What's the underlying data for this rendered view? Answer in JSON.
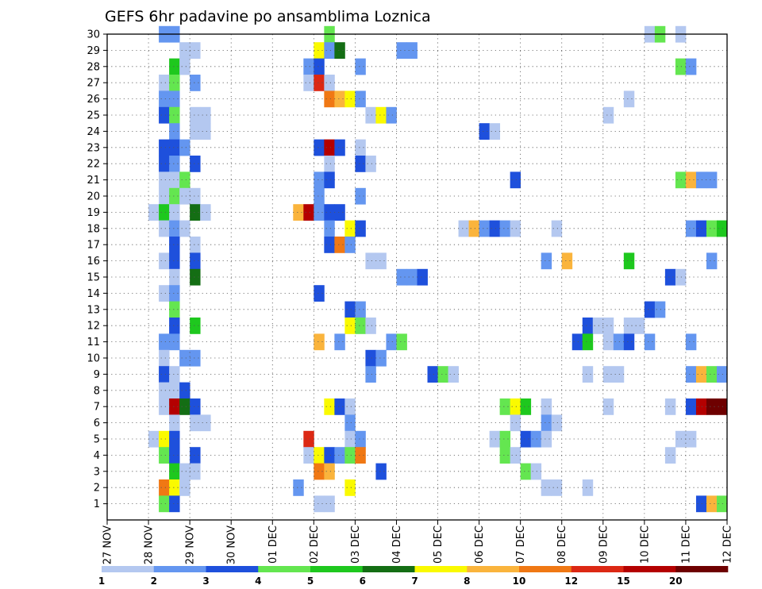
{
  "chart_data": {
    "type": "heatmap",
    "title": "GEFS 6hr padavine po ansamblima Loznica",
    "xlabel": "",
    "ylabel": "",
    "x_tick_labels": [
      "27 NOV",
      "28 NOV",
      "29 NOV",
      "30 NOV",
      "01 DEC",
      "02 DEC",
      "03 DEC",
      "04 DEC",
      "05 DEC",
      "06 DEC",
      "07 DEC",
      "08 DEC",
      "09 DEC",
      "10 DEC",
      "11 DEC",
      "12 DEC"
    ],
    "y_tick_labels": [
      "1",
      "2",
      "3",
      "4",
      "5",
      "6",
      "7",
      "8",
      "9",
      "10",
      "11",
      "12",
      "13",
      "14",
      "15",
      "16",
      "17",
      "18",
      "19",
      "20",
      "21",
      "22",
      "23",
      "24",
      "25",
      "26",
      "27",
      "28",
      "29",
      "30"
    ],
    "xlim_steps": [
      0,
      60
    ],
    "ylim": [
      0,
      30
    ],
    "grid": true,
    "colorbar": {
      "colors": [
        "#b4c8f0",
        "#6496f0",
        "#1e50dc",
        "#64e650",
        "#1ec81e",
        "#146e14",
        "#fafa00",
        "#fab43c",
        "#f07814",
        "#dc2814",
        "#b40000",
        "#6e0000"
      ],
      "labels": [
        "1",
        "2",
        "3",
        "4",
        "5",
        "6",
        "7",
        "8",
        "10",
        "12",
        "15",
        "20"
      ]
    },
    "cells": [
      {
        "m": 30,
        "s": [
          [
            5,
            2
          ],
          [
            6,
            2
          ],
          [
            21,
            4
          ],
          [
            52,
            1
          ],
          [
            53,
            4
          ],
          [
            55,
            1
          ]
        ]
      },
      {
        "m": 29,
        "s": [
          [
            7,
            1
          ],
          [
            8,
            1
          ],
          [
            20,
            7
          ],
          [
            21,
            2
          ],
          [
            22,
            6
          ],
          [
            28,
            2
          ],
          [
            29,
            2
          ]
        ]
      },
      {
        "m": 28,
        "s": [
          [
            6,
            5
          ],
          [
            7,
            1
          ],
          [
            19,
            2
          ],
          [
            20,
            3
          ],
          [
            24,
            2
          ],
          [
            55,
            4
          ],
          [
            56,
            2
          ]
        ]
      },
      {
        "m": 27,
        "s": [
          [
            5,
            1
          ],
          [
            6,
            4
          ],
          [
            8,
            2
          ],
          [
            19,
            1
          ],
          [
            20,
            10
          ],
          [
            21,
            1
          ]
        ]
      },
      {
        "m": 26,
        "s": [
          [
            5,
            2
          ],
          [
            6,
            2
          ],
          [
            21,
            9
          ],
          [
            22,
            8
          ],
          [
            23,
            7
          ],
          [
            24,
            2
          ],
          [
            50,
            1
          ]
        ]
      },
      {
        "m": 25,
        "s": [
          [
            5,
            3
          ],
          [
            6,
            4
          ],
          [
            8,
            1
          ],
          [
            9,
            1
          ],
          [
            25,
            1
          ],
          [
            26,
            7
          ],
          [
            27,
            2
          ],
          [
            48,
            1
          ]
        ]
      },
      {
        "m": 24,
        "s": [
          [
            6,
            2
          ],
          [
            8,
            1
          ],
          [
            9,
            1
          ],
          [
            36,
            3
          ],
          [
            37,
            1
          ]
        ]
      },
      {
        "m": 23,
        "s": [
          [
            5,
            3
          ],
          [
            6,
            3
          ],
          [
            7,
            2
          ],
          [
            20,
            3
          ],
          [
            21,
            11
          ],
          [
            22,
            3
          ],
          [
            24,
            1
          ]
        ]
      },
      {
        "m": 22,
        "s": [
          [
            5,
            3
          ],
          [
            6,
            2
          ],
          [
            8,
            3
          ],
          [
            21,
            1
          ],
          [
            24,
            3
          ],
          [
            25,
            1
          ]
        ]
      },
      {
        "m": 21,
        "s": [
          [
            5,
            1
          ],
          [
            6,
            1
          ],
          [
            7,
            4
          ],
          [
            20,
            2
          ],
          [
            21,
            3
          ],
          [
            39,
            3
          ],
          [
            55,
            4
          ],
          [
            56,
            8
          ],
          [
            57,
            2
          ],
          [
            58,
            2
          ]
        ]
      },
      {
        "m": 20,
        "s": [
          [
            5,
            1
          ],
          [
            6,
            4
          ],
          [
            7,
            1
          ],
          [
            8,
            1
          ],
          [
            20,
            2
          ],
          [
            24,
            2
          ]
        ]
      },
      {
        "m": 19,
        "s": [
          [
            4,
            1
          ],
          [
            5,
            5
          ],
          [
            6,
            1
          ],
          [
            8,
            6
          ],
          [
            9,
            1
          ],
          [
            18,
            8
          ],
          [
            19,
            11
          ],
          [
            20,
            2
          ],
          [
            21,
            3
          ],
          [
            22,
            3
          ]
        ]
      },
      {
        "m": 18,
        "s": [
          [
            5,
            1
          ],
          [
            6,
            2
          ],
          [
            7,
            1
          ],
          [
            21,
            2
          ],
          [
            23,
            7
          ],
          [
            24,
            3
          ],
          [
            34,
            1
          ],
          [
            35,
            8
          ],
          [
            36,
            2
          ],
          [
            37,
            3
          ],
          [
            38,
            2
          ],
          [
            39,
            1
          ],
          [
            43,
            1
          ],
          [
            56,
            2
          ],
          [
            57,
            3
          ],
          [
            58,
            4
          ],
          [
            59,
            5
          ]
        ]
      },
      {
        "m": 17,
        "s": [
          [
            6,
            3
          ],
          [
            8,
            1
          ],
          [
            21,
            3
          ],
          [
            22,
            9
          ],
          [
            23,
            2
          ]
        ]
      },
      {
        "m": 16,
        "s": [
          [
            5,
            1
          ],
          [
            6,
            3
          ],
          [
            8,
            3
          ],
          [
            25,
            1
          ],
          [
            26,
            1
          ],
          [
            42,
            2
          ],
          [
            44,
            8
          ],
          [
            50,
            5
          ],
          [
            58,
            2
          ]
        ]
      },
      {
        "m": 15,
        "s": [
          [
            6,
            1
          ],
          [
            8,
            6
          ],
          [
            28,
            2
          ],
          [
            29,
            2
          ],
          [
            30,
            3
          ],
          [
            54,
            3
          ],
          [
            55,
            1
          ]
        ]
      },
      {
        "m": 14,
        "s": [
          [
            5,
            1
          ],
          [
            6,
            2
          ],
          [
            20,
            3
          ]
        ]
      },
      {
        "m": 13,
        "s": [
          [
            6,
            4
          ],
          [
            23,
            3
          ],
          [
            24,
            2
          ],
          [
            52,
            3
          ],
          [
            53,
            2
          ]
        ]
      },
      {
        "m": 12,
        "s": [
          [
            6,
            3
          ],
          [
            8,
            5
          ],
          [
            23,
            7
          ],
          [
            24,
            4
          ],
          [
            25,
            1
          ],
          [
            46,
            3
          ],
          [
            47,
            1
          ],
          [
            48,
            1
          ],
          [
            50,
            1
          ],
          [
            51,
            1
          ]
        ]
      },
      {
        "m": 11,
        "s": [
          [
            5,
            2
          ],
          [
            6,
            2
          ],
          [
            20,
            8
          ],
          [
            22,
            2
          ],
          [
            27,
            2
          ],
          [
            28,
            4
          ],
          [
            45,
            3
          ],
          [
            46,
            5
          ],
          [
            48,
            1
          ],
          [
            49,
            2
          ],
          [
            50,
            3
          ],
          [
            52,
            2
          ],
          [
            56,
            2
          ]
        ]
      },
      {
        "m": 10,
        "s": [
          [
            5,
            1
          ],
          [
            7,
            2
          ],
          [
            8,
            2
          ],
          [
            25,
            3
          ],
          [
            26,
            2
          ]
        ]
      },
      {
        "m": 9,
        "s": [
          [
            5,
            3
          ],
          [
            6,
            1
          ],
          [
            25,
            2
          ],
          [
            31,
            3
          ],
          [
            32,
            4
          ],
          [
            33,
            1
          ],
          [
            46,
            1
          ],
          [
            48,
            1
          ],
          [
            49,
            1
          ],
          [
            56,
            2
          ],
          [
            57,
            8
          ],
          [
            58,
            4
          ],
          [
            59,
            2
          ]
        ]
      },
      {
        "m": 8,
        "s": [
          [
            5,
            1
          ],
          [
            6,
            1
          ],
          [
            7,
            3
          ]
        ]
      },
      {
        "m": 7,
        "s": [
          [
            5,
            1
          ],
          [
            6,
            11
          ],
          [
            7,
            6
          ],
          [
            8,
            3
          ],
          [
            21,
            7
          ],
          [
            22,
            3
          ],
          [
            23,
            1
          ],
          [
            38,
            4
          ],
          [
            39,
            7
          ],
          [
            40,
            5
          ],
          [
            42,
            1
          ],
          [
            48,
            1
          ],
          [
            54,
            1
          ],
          [
            56,
            3
          ],
          [
            57,
            11
          ],
          [
            58,
            12
          ],
          [
            59,
            12
          ]
        ]
      },
      {
        "m": 6,
        "s": [
          [
            6,
            1
          ],
          [
            8,
            1
          ],
          [
            9,
            1
          ],
          [
            23,
            2
          ],
          [
            39,
            1
          ],
          [
            42,
            2
          ],
          [
            43,
            1
          ]
        ]
      },
      {
        "m": 5,
        "s": [
          [
            4,
            1
          ],
          [
            5,
            7
          ],
          [
            6,
            3
          ],
          [
            19,
            10
          ],
          [
            23,
            1
          ],
          [
            24,
            2
          ],
          [
            37,
            1
          ],
          [
            38,
            4
          ],
          [
            40,
            3
          ],
          [
            41,
            2
          ],
          [
            42,
            1
          ],
          [
            55,
            1
          ],
          [
            56,
            1
          ]
        ]
      },
      {
        "m": 4,
        "s": [
          [
            5,
            4
          ],
          [
            6,
            3
          ],
          [
            8,
            3
          ],
          [
            19,
            1
          ],
          [
            20,
            7
          ],
          [
            21,
            3
          ],
          [
            22,
            2
          ],
          [
            23,
            4
          ],
          [
            24,
            9
          ],
          [
            38,
            4
          ],
          [
            39,
            1
          ],
          [
            54,
            1
          ]
        ]
      },
      {
        "m": 3,
        "s": [
          [
            6,
            5
          ],
          [
            7,
            1
          ],
          [
            8,
            1
          ],
          [
            20,
            9
          ],
          [
            21,
            8
          ],
          [
            26,
            3
          ],
          [
            40,
            4
          ],
          [
            41,
            1
          ]
        ]
      },
      {
        "m": 2,
        "s": [
          [
            5,
            9
          ],
          [
            6,
            7
          ],
          [
            7,
            1
          ],
          [
            18,
            2
          ],
          [
            23,
            7
          ],
          [
            42,
            1
          ],
          [
            43,
            1
          ],
          [
            46,
            1
          ]
        ]
      },
      {
        "m": 1,
        "s": [
          [
            5,
            4
          ],
          [
            6,
            3
          ],
          [
            20,
            1
          ],
          [
            21,
            1
          ],
          [
            57,
            3
          ],
          [
            58,
            8
          ],
          [
            59,
            4
          ]
        ]
      }
    ]
  }
}
